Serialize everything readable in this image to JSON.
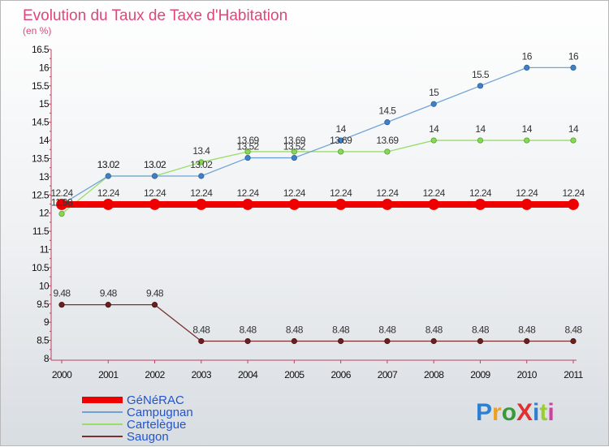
{
  "chart_data": {
    "type": "line",
    "title": "Evolution du Taux de Taxe d'Habitation",
    "subtitle": "(en %)",
    "x": [
      "2000",
      "2001",
      "2002",
      "2003",
      "2004",
      "2005",
      "2006",
      "2007",
      "2008",
      "2009",
      "2010",
      "2011"
    ],
    "ylim": [
      8,
      16.5
    ],
    "yticks": [
      "8",
      "8.5",
      "9",
      "9.5",
      "10",
      "10.5",
      "11",
      "11.5",
      "12",
      "12.5",
      "13",
      "13.5",
      "14",
      "14.5",
      "15",
      "15.5",
      "16",
      "16.5"
    ],
    "grid": false,
    "legend_position": "bottom-left",
    "series": [
      {
        "name": "GéNéRAC",
        "color": "#ee0000",
        "values": [
          12.24,
          12.24,
          12.24,
          12.24,
          12.24,
          12.24,
          12.24,
          12.24,
          12.24,
          12.24,
          12.24,
          12.24
        ]
      },
      {
        "name": "Campugnan",
        "color": "#6fa3d6",
        "values": [
          12.24,
          13.02,
          13.02,
          13.02,
          13.52,
          13.52,
          14,
          14.5,
          15,
          15.5,
          16,
          16
        ]
      },
      {
        "name": "Cartelègue",
        "color": "#99dd66",
        "values": [
          11.98,
          13.02,
          13.02,
          13.4,
          13.69,
          13.69,
          13.69,
          13.69,
          14,
          14,
          14,
          14
        ]
      },
      {
        "name": "Saugon",
        "color": "#7a3030",
        "values": [
          9.48,
          9.48,
          9.48,
          8.48,
          8.48,
          8.48,
          8.48,
          8.48,
          8.48,
          8.48,
          8.48,
          8.48
        ]
      }
    ],
    "data_labels": [
      [
        "12.24",
        "12.24",
        "12.24",
        "12.24",
        "12.24",
        "12.24",
        "12.24",
        "12.24",
        "12.24",
        "12.24",
        "12.24",
        "12.24"
      ],
      [
        "",
        "13.02",
        "13.02",
        "13.02",
        "13.52",
        "13.52",
        "14",
        "14.5",
        "15",
        "15.5",
        "16",
        "16"
      ],
      [
        "11.98",
        "13.02",
        "13.02",
        "13.4",
        "13.69",
        "13.69",
        "13.69",
        "13.69",
        "14",
        "14",
        "14",
        "14"
      ],
      [
        "9.48",
        "9.48",
        "9.48",
        "8.48",
        "8.48",
        "8.48",
        "8.48",
        "8.48",
        "8.48",
        "8.48",
        "8.48",
        "8.48"
      ]
    ]
  },
  "logo": {
    "text": "ProXiti",
    "letters": [
      {
        "ch": "P",
        "color": "#2f7fd0"
      },
      {
        "ch": "r",
        "color": "#f0a020"
      },
      {
        "ch": "o",
        "color": "#3a9a3a"
      },
      {
        "ch": "X",
        "color": "#e03030"
      },
      {
        "ch": "i",
        "color": "#2f7fd0"
      },
      {
        "ch": "t",
        "color": "#9acd32"
      },
      {
        "ch": "i",
        "color": "#d040a0"
      }
    ]
  }
}
